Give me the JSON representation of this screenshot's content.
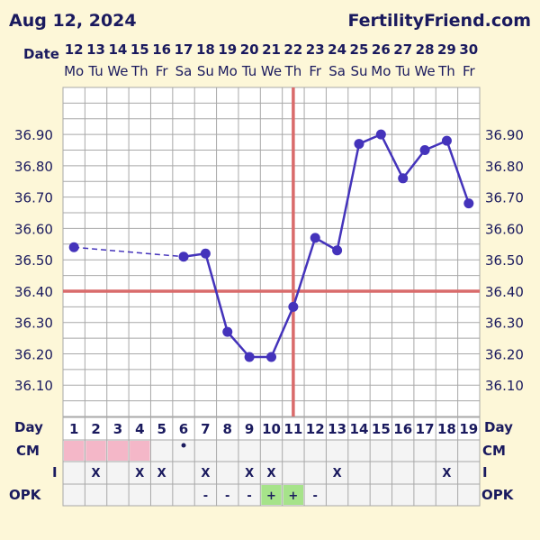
{
  "header": {
    "date": "Aug 12, 2024",
    "brand": "FertilityFriend.com"
  },
  "labels": {
    "date": "Date",
    "day": "Day",
    "cm": "CM",
    "i": "I",
    "opk": "OPK"
  },
  "colors": {
    "line": "#4433bb",
    "coverline": "#d96b6b",
    "grid": "#a8a8a8",
    "plot_bg": "#ffffff",
    "page_bg": "#fdf7d8",
    "row_bg": "#f4f4f4",
    "cm_fill": "#f4b7c8",
    "opk_positive": "#a6e38a"
  },
  "chart_data": {
    "type": "line",
    "dates": [
      "12",
      "13",
      "14",
      "15",
      "16",
      "17",
      "18",
      "19",
      "20",
      "21",
      "22",
      "23",
      "24",
      "25",
      "26",
      "27",
      "28",
      "29",
      "30"
    ],
    "weekdays": [
      "Mo",
      "Tu",
      "We",
      "Th",
      "Fr",
      "Sa",
      "Su",
      "Mo",
      "Tu",
      "We",
      "Th",
      "Fr",
      "Sa",
      "Su",
      "Mo",
      "Tu",
      "We",
      "Th",
      "Fr"
    ],
    "cycle_days": [
      "1",
      "2",
      "3",
      "4",
      "5",
      "6",
      "7",
      "8",
      "9",
      "10",
      "11",
      "12",
      "13",
      "14",
      "15",
      "16",
      "17",
      "18",
      "19"
    ],
    "ylim": [
      36.0,
      37.05
    ],
    "yticks": [
      "36.10",
      "36.20",
      "36.30",
      "36.40",
      "36.50",
      "36.60",
      "36.70",
      "36.80",
      "36.90"
    ],
    "temperatures": [
      36.54,
      null,
      null,
      null,
      null,
      36.51,
      36.52,
      36.27,
      36.19,
      36.19,
      36.35,
      36.57,
      36.53,
      36.87,
      36.9,
      36.76,
      36.85,
      36.88,
      36.68
    ],
    "dashed_gaps": [
      [
        0,
        5
      ]
    ],
    "coverline": 36.4,
    "ovulation_day_index": 10,
    "cm": [
      "pink",
      "pink",
      "pink",
      "pink",
      "",
      "dot",
      "",
      "",
      "",
      "",
      "",
      "",
      "",
      "",
      "",
      "",
      "",
      "",
      ""
    ],
    "intercourse": [
      "",
      "X",
      "",
      "X",
      "X",
      "",
      "X",
      "",
      "X",
      "X",
      "",
      "",
      "X",
      "",
      "",
      "",
      "",
      "X",
      ""
    ],
    "opk": [
      "",
      "",
      "",
      "",
      "",
      "",
      "-",
      "-",
      "-",
      "+",
      "+",
      "-",
      "",
      "",
      "",
      "",
      "",
      "",
      ""
    ]
  }
}
